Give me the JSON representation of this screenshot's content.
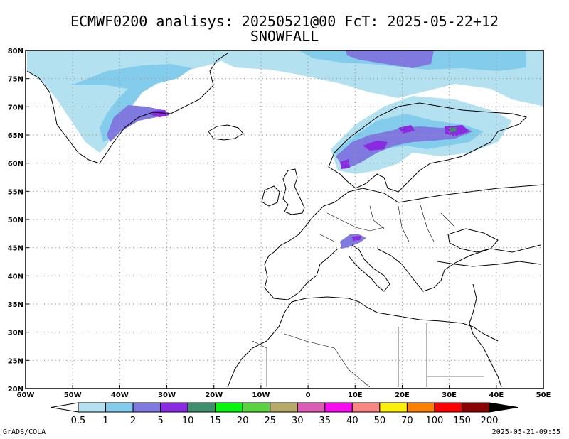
{
  "title": {
    "line1": "ECMWF0200 analisys: 20250521@00 FcT: 2025-05-22+12",
    "line2": "SNOWFALL"
  },
  "map": {
    "lon_range": [
      -60,
      50
    ],
    "lat_range": [
      20,
      80
    ],
    "lon_labels": [
      "60W",
      "50W",
      "40W",
      "30W",
      "20W",
      "10W",
      "0",
      "10E",
      "20E",
      "30E",
      "40E",
      "50E"
    ],
    "lat_labels": [
      "20N",
      "25N",
      "30N",
      "35N",
      "40N",
      "45N",
      "50N",
      "55N",
      "60N",
      "65N",
      "70N",
      "75N",
      "80N"
    ]
  },
  "legend": {
    "thresholds": [
      "0.5",
      "1",
      "2",
      "5",
      "10",
      "15",
      "20",
      "25",
      "30",
      "35",
      "40",
      "50",
      "70",
      "100",
      "150",
      "200"
    ],
    "colors": [
      "#b4e1f0",
      "#83cceb",
      "#8079e0",
      "#8b2be1",
      "#3f8e6e",
      "#07f50e",
      "#5bd33e",
      "#b5aa68",
      "#dc5cb4",
      "#f70cf0",
      "#fa8585",
      "#fbf00a",
      "#fb8003",
      "#fb0101",
      "#8a0101"
    ],
    "low_color": "#ffffff",
    "high_color": "#000000"
  },
  "footer": {
    "left": "GrADS/COLA",
    "right": "2025-05-21-09:55"
  }
}
